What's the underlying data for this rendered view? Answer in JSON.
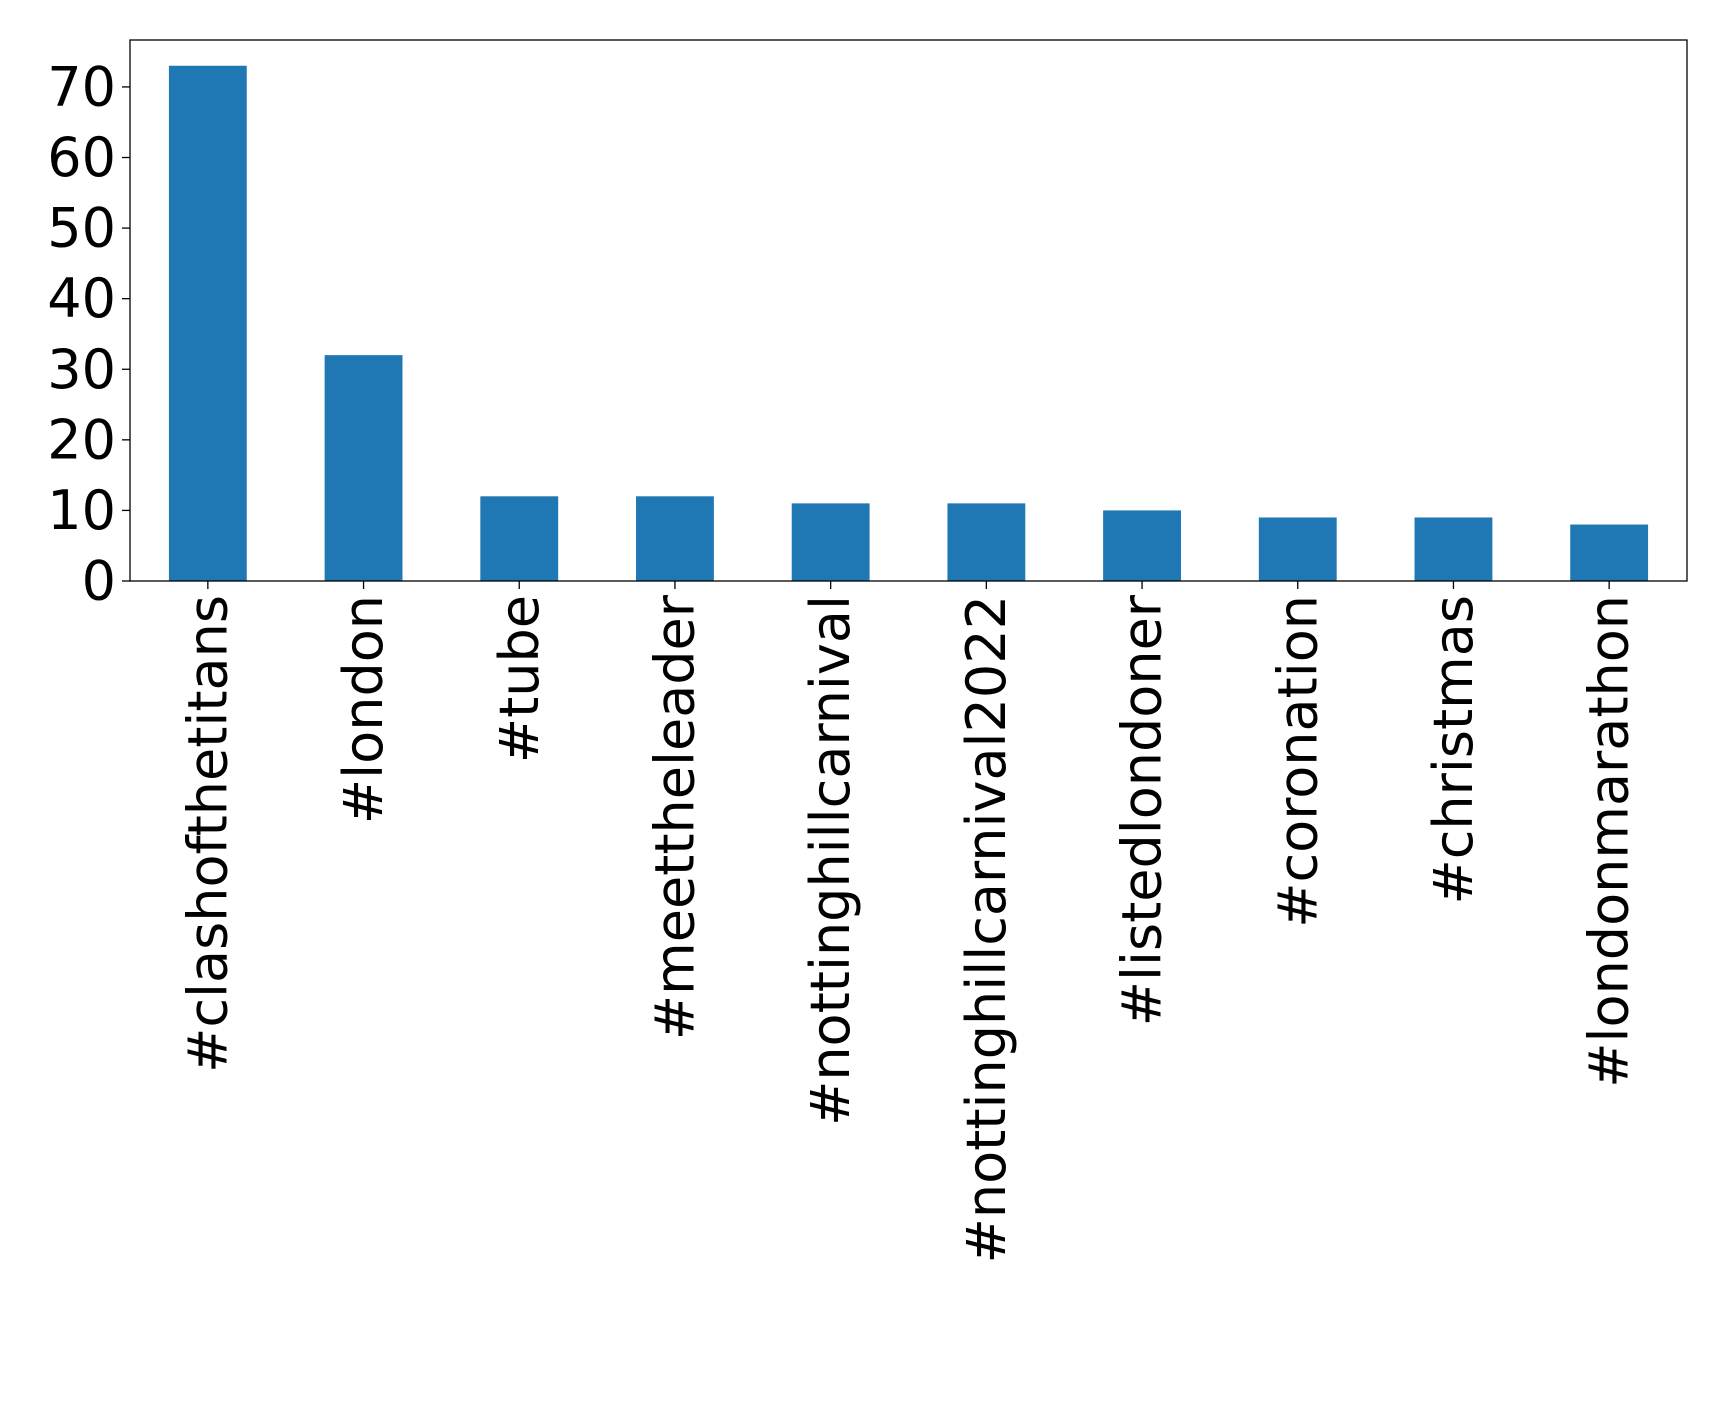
{
  "chart_data": {
    "type": "bar",
    "title": "",
    "xlabel": "",
    "ylabel": "",
    "categories": [
      "#clashofthetitans",
      "#london",
      "#tube",
      "#meettheleader",
      "#nottinghillcarnival",
      "#nottinghillcarnival2022",
      "#listedlondoner",
      "#coronation",
      "#christmas",
      "#londonmarathon"
    ],
    "values": [
      73,
      32,
      12,
      12,
      11,
      11,
      10,
      9,
      9,
      8
    ],
    "ylim": [
      0,
      76.65
    ],
    "yticks": [
      0,
      10,
      20,
      30,
      40,
      50,
      60,
      70
    ],
    "grid": false,
    "legend": "none",
    "bar_color": "#1f77b4"
  }
}
